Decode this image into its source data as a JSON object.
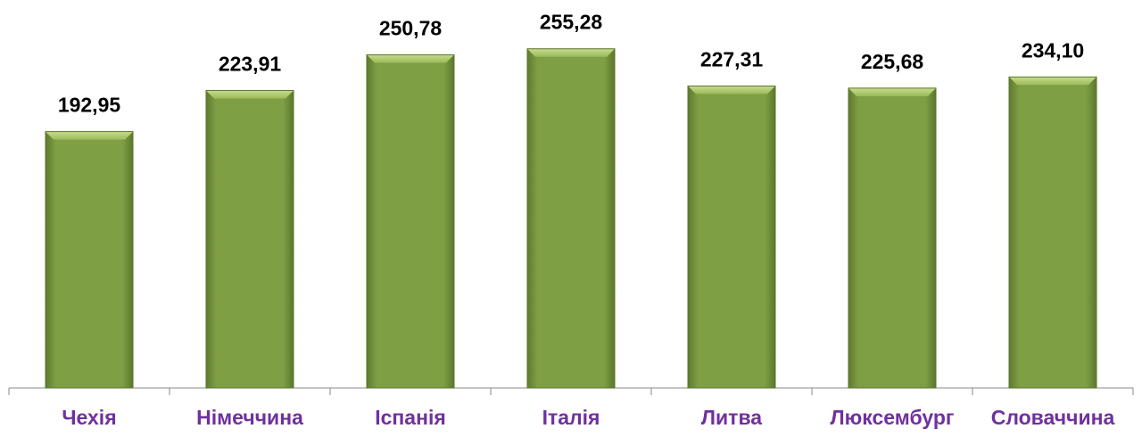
{
  "chart_data": {
    "type": "bar",
    "categories": [
      "Чехія",
      "Німеччина",
      "Іспанія",
      "Італія",
      "Литва",
      "Люксембург",
      "Словаччина"
    ],
    "values": [
      192.95,
      223.91,
      250.78,
      255.28,
      227.31,
      225.68,
      234.1
    ],
    "value_labels": [
      "192,95",
      "223,91",
      "250,78",
      "255,28",
      "227,31",
      "225,68",
      "234,10"
    ],
    "color": "#7f9f45",
    "ylim": [
      0,
      290
    ]
  }
}
